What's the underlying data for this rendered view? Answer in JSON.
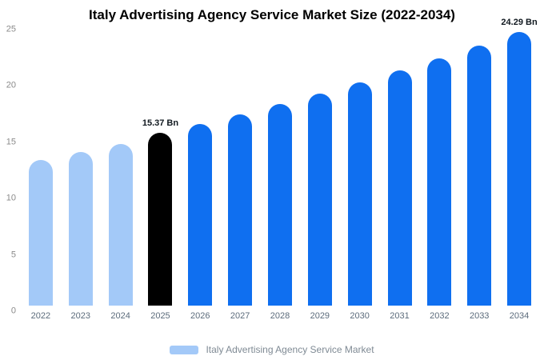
{
  "title": "Italy Advertising Agency Service Market Size (2022-2034)",
  "legend": {
    "label": "Italy Advertising Agency Service Market",
    "swatch_color": "#a3c9f8"
  },
  "colors": {
    "historical_bar": "#a3c9f8",
    "base_year_bar": "#000000",
    "forecast_bar": "#0f6ff0",
    "background": "#ffffff"
  },
  "chart_data": {
    "type": "bar",
    "title": "Italy Advertising Agency Service Market Size (2022-2034)",
    "categories": [
      "2022",
      "2023",
      "2024",
      "2025",
      "2026",
      "2027",
      "2028",
      "2029",
      "2030",
      "2031",
      "2032",
      "2033",
      "2034"
    ],
    "values": [
      12.99,
      13.67,
      14.38,
      15.37,
      16.18,
      17.02,
      17.91,
      18.85,
      19.84,
      20.88,
      21.97,
      23.12,
      24.29
    ],
    "unit": "Bn",
    "bar_colors": [
      "#a3c9f8",
      "#a3c9f8",
      "#a3c9f8",
      "#000000",
      "#0f6ff0",
      "#0f6ff0",
      "#0f6ff0",
      "#0f6ff0",
      "#0f6ff0",
      "#0f6ff0",
      "#0f6ff0",
      "#0f6ff0",
      "#0f6ff0"
    ],
    "annotations": [
      {
        "category": "2025",
        "text": "15.37 Bn"
      },
      {
        "category": "2034",
        "text": "24.29 Bn"
      }
    ],
    "y_ticks": [
      0,
      5,
      10,
      15,
      20,
      25
    ],
    "ylim": [
      0,
      25
    ],
    "xlabel": "",
    "ylabel": "",
    "grid": false,
    "legend_entries": [
      "Italy Advertising Agency Service Market"
    ],
    "legend_position": "bottom"
  }
}
